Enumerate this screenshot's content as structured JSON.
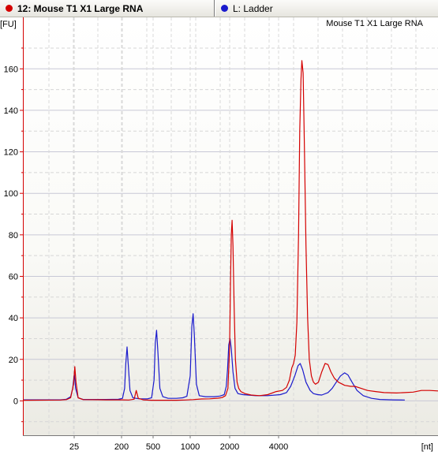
{
  "tabs": [
    {
      "label": "12: Mouse T1 X1 Large RNA",
      "color": "#d40000"
    },
    {
      "label": "L: Ladder",
      "color": "#1a1acc"
    }
  ],
  "chart_data": {
    "type": "line",
    "title": "Mouse T1 X1 Large RNA",
    "ylabel": "[FU]",
    "xlabel": "[nt]",
    "yticks": [
      0,
      20,
      40,
      60,
      80,
      100,
      120,
      140,
      160
    ],
    "ylim": [
      -16,
      182
    ],
    "xticks": [
      "25",
      "200",
      "500",
      "1000",
      "2000",
      "4000"
    ],
    "grid": true,
    "series": [
      {
        "name": "Mouse T1 X1 Large RNA",
        "color": "#d40000",
        "points": [
          [
            0.0,
            0.3
          ],
          [
            0.09,
            0.4
          ],
          [
            0.105,
            0.6
          ],
          [
            0.115,
            1.5
          ],
          [
            0.122,
            8
          ],
          [
            0.125,
            16.5
          ],
          [
            0.128,
            9
          ],
          [
            0.133,
            1.5
          ],
          [
            0.145,
            0.6
          ],
          [
            0.2,
            0.5
          ],
          [
            0.24,
            0.5
          ],
          [
            0.255,
            0.4
          ],
          [
            0.268,
            0.8
          ],
          [
            0.273,
            5
          ],
          [
            0.278,
            1.2
          ],
          [
            0.29,
            0.5
          ],
          [
            0.31,
            0.3
          ],
          [
            0.33,
            0.3
          ],
          [
            0.35,
            0.3
          ],
          [
            0.37,
            0.3
          ],
          [
            0.39,
            0.4
          ],
          [
            0.41,
            0.6
          ],
          [
            0.43,
            0.9
          ],
          [
            0.45,
            1.0
          ],
          [
            0.47,
            1.3
          ],
          [
            0.48,
            1.6
          ],
          [
            0.488,
            2.5
          ],
          [
            0.494,
            6
          ],
          [
            0.498,
            25
          ],
          [
            0.5,
            55
          ],
          [
            0.502,
            80
          ],
          [
            0.504,
            87
          ],
          [
            0.506,
            75
          ],
          [
            0.509,
            45
          ],
          [
            0.512,
            20
          ],
          [
            0.516,
            9
          ],
          [
            0.52,
            6
          ],
          [
            0.525,
            4.5
          ],
          [
            0.535,
            3.5
          ],
          [
            0.55,
            2.8
          ],
          [
            0.57,
            2.5
          ],
          [
            0.59,
            3
          ],
          [
            0.61,
            4.5
          ],
          [
            0.625,
            5
          ],
          [
            0.635,
            6.5
          ],
          [
            0.642,
            10
          ],
          [
            0.648,
            16
          ],
          [
            0.652,
            18
          ],
          [
            0.656,
            22
          ],
          [
            0.66,
            38
          ],
          [
            0.664,
            80
          ],
          [
            0.667,
            130
          ],
          [
            0.67,
            155
          ],
          [
            0.672,
            164
          ],
          [
            0.675,
            158
          ],
          [
            0.678,
            125
          ],
          [
            0.682,
            75
          ],
          [
            0.686,
            40
          ],
          [
            0.69,
            20
          ],
          [
            0.695,
            12
          ],
          [
            0.7,
            9
          ],
          [
            0.705,
            8
          ],
          [
            0.712,
            9
          ],
          [
            0.72,
            14
          ],
          [
            0.728,
            18
          ],
          [
            0.735,
            17.5
          ],
          [
            0.742,
            14
          ],
          [
            0.75,
            11
          ],
          [
            0.76,
            9
          ],
          [
            0.775,
            7.5
          ],
          [
            0.79,
            7
          ],
          [
            0.8,
            7
          ],
          [
            0.815,
            6
          ],
          [
            0.83,
            5
          ],
          [
            0.85,
            4.5
          ],
          [
            0.87,
            4
          ],
          [
            0.9,
            3.8
          ],
          [
            0.92,
            4
          ],
          [
            0.94,
            4.2
          ],
          [
            0.96,
            5
          ],
          [
            0.98,
            5
          ],
          [
            1.0,
            4.8
          ]
        ]
      },
      {
        "name": "L: Ladder",
        "color": "#1a1acc",
        "points": [
          [
            0.0,
            0.5
          ],
          [
            0.09,
            0.5
          ],
          [
            0.105,
            0.8
          ],
          [
            0.115,
            2
          ],
          [
            0.12,
            6
          ],
          [
            0.124,
            13
          ],
          [
            0.127,
            6
          ],
          [
            0.133,
            1.5
          ],
          [
            0.145,
            0.7
          ],
          [
            0.2,
            0.7
          ],
          [
            0.23,
            0.8
          ],
          [
            0.24,
            1.2
          ],
          [
            0.245,
            6
          ],
          [
            0.248,
            18
          ],
          [
            0.251,
            26
          ],
          [
            0.254,
            17
          ],
          [
            0.258,
            5
          ],
          [
            0.265,
            1.5
          ],
          [
            0.28,
            1
          ],
          [
            0.3,
            1
          ],
          [
            0.31,
            1.5
          ],
          [
            0.316,
            10
          ],
          [
            0.319,
            28
          ],
          [
            0.322,
            34
          ],
          [
            0.325,
            24
          ],
          [
            0.33,
            6
          ],
          [
            0.337,
            2
          ],
          [
            0.35,
            1.2
          ],
          [
            0.37,
            1.2
          ],
          [
            0.385,
            1.5
          ],
          [
            0.395,
            2.2
          ],
          [
            0.403,
            12
          ],
          [
            0.407,
            36
          ],
          [
            0.41,
            42
          ],
          [
            0.413,
            32
          ],
          [
            0.418,
            8
          ],
          [
            0.425,
            2.5
          ],
          [
            0.44,
            2
          ],
          [
            0.46,
            2
          ],
          [
            0.475,
            2.3
          ],
          [
            0.485,
            3
          ],
          [
            0.49,
            7
          ],
          [
            0.493,
            15
          ],
          [
            0.496,
            27
          ],
          [
            0.499,
            30
          ],
          [
            0.502,
            25
          ],
          [
            0.506,
            14
          ],
          [
            0.511,
            6
          ],
          [
            0.518,
            3.5
          ],
          [
            0.53,
            3
          ],
          [
            0.56,
            2.5
          ],
          [
            0.59,
            2.5
          ],
          [
            0.62,
            3
          ],
          [
            0.635,
            4
          ],
          [
            0.645,
            7
          ],
          [
            0.655,
            12
          ],
          [
            0.663,
            17
          ],
          [
            0.668,
            18
          ],
          [
            0.674,
            15
          ],
          [
            0.682,
            9
          ],
          [
            0.692,
            5
          ],
          [
            0.7,
            3.5
          ],
          [
            0.71,
            3
          ],
          [
            0.72,
            2.8
          ],
          [
            0.735,
            4
          ],
          [
            0.745,
            6
          ],
          [
            0.755,
            9
          ],
          [
            0.765,
            12
          ],
          [
            0.775,
            13.5
          ],
          [
            0.783,
            12.5
          ],
          [
            0.793,
            9
          ],
          [
            0.805,
            5
          ],
          [
            0.82,
            2.5
          ],
          [
            0.84,
            1.2
          ],
          [
            0.86,
            0.7
          ],
          [
            0.89,
            0.5
          ],
          [
            0.92,
            0.4
          ]
        ]
      }
    ]
  }
}
